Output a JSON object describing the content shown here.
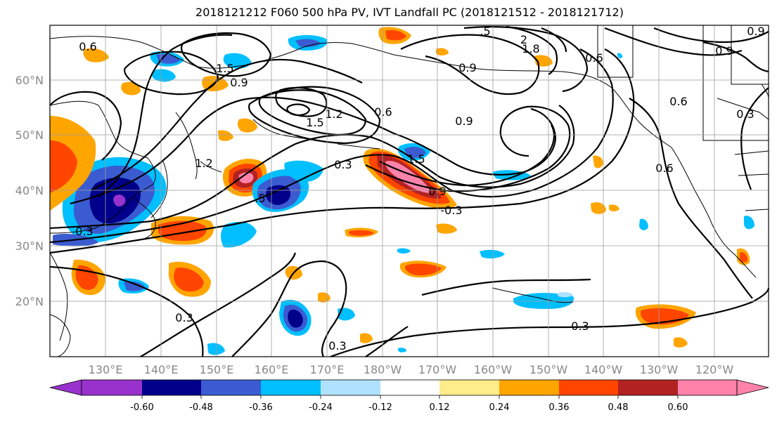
{
  "title": "2018121212 F060 500 hPa PV, IVT Landfall PC (2018121512 - 2018121712)",
  "lat_labels": [
    "60°N",
    "50°N",
    "40°N",
    "30°N",
    "20°N"
  ],
  "lon_labels": [
    "130°E",
    "140°E",
    "150°E",
    "160°E",
    "170°E",
    "180°W",
    "170°W",
    "160°W",
    "150°W",
    "140°W",
    "130°W",
    "120°W"
  ],
  "contour_labels": [
    "0.6",
    "1.5",
    "0.9",
    ".5",
    "2",
    "1.8",
    "0.9",
    "0.6",
    "0.9",
    "0.9",
    "1.2",
    "1.5",
    "0.6",
    "0.9",
    "0.3",
    "1.5",
    "0.9",
    "-0.3",
    "1.2",
    ".5",
    "0.3",
    "0.6",
    "0.6",
    "0.3",
    "0.3",
    "0.3",
    "0.3"
  ],
  "colorbar": {
    "colors": [
      "#9932cc",
      "#00008b",
      "#3b5bd1",
      "#00bfff",
      "#b0e2ff",
      "#ffffff",
      "#ffec8b",
      "#ffa500",
      "#ff4500",
      "#b22222",
      "#ff82ab"
    ],
    "tick_labels": [
      "-0.60",
      "-0.48",
      "-0.36",
      "-0.24",
      "-0.12",
      "0.12",
      "0.24",
      "0.36",
      "0.48",
      "0.60"
    ]
  },
  "shading_colors": {
    "neg_strong": "#00008b",
    "neg_mid": "#3b5bd1",
    "neg_weak": "#00bfff",
    "neg_faint": "#b0e2ff",
    "pos_faint": "#ffec8b",
    "pos_weak": "#ffa500",
    "pos_mid": "#ff4500",
    "pos_strong": "#b22222",
    "pos_max": "#ff82ab"
  }
}
